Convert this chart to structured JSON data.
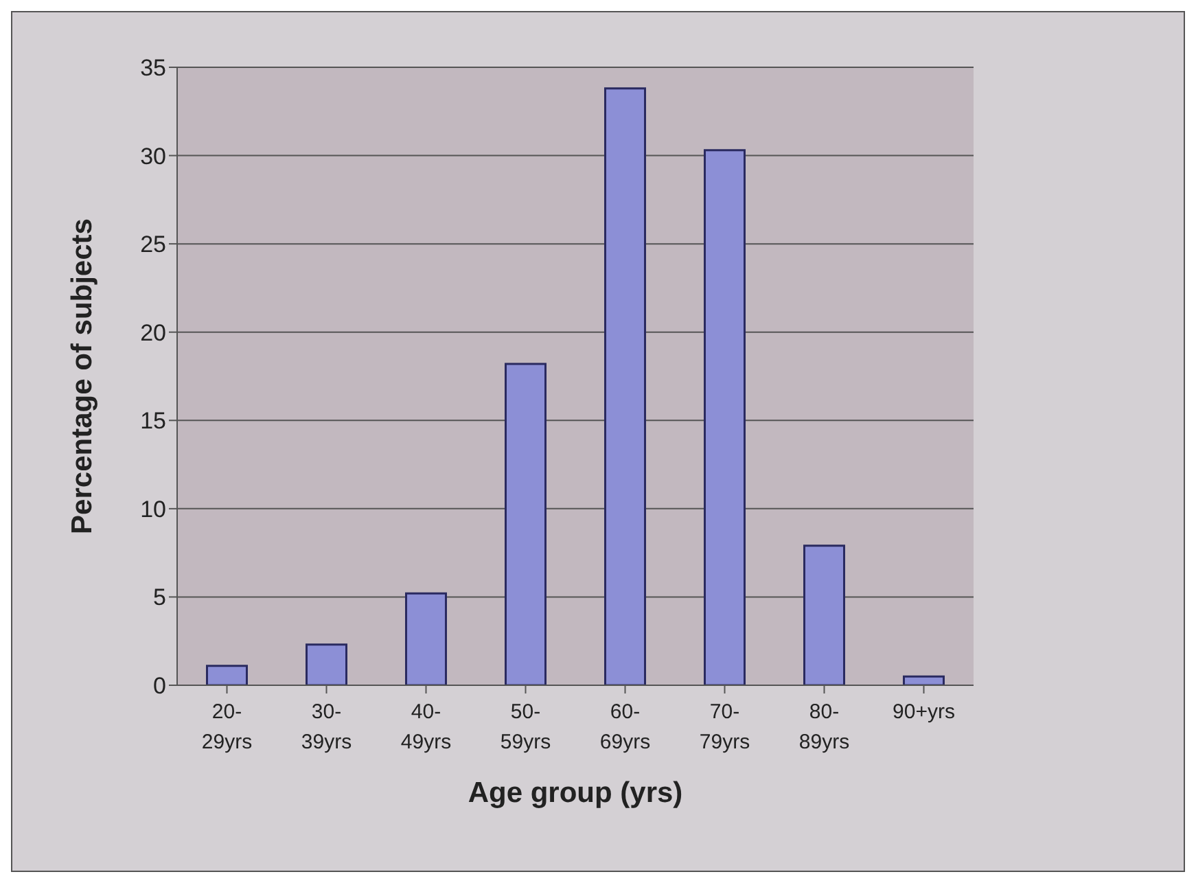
{
  "chart_data": {
    "type": "bar",
    "xlabel": "Age group (yrs)",
    "ylabel": "Percentage of subjects",
    "categories": [
      "20-29yrs",
      "30-39yrs",
      "40-49yrs",
      "50-59yrs",
      "60-69yrs",
      "70-79yrs",
      "80-89yrs",
      "90+yrs"
    ],
    "values": [
      1.1,
      2.3,
      5.2,
      18.2,
      33.8,
      30.3,
      7.9,
      0.5
    ],
    "color": "#8c8fd6",
    "ylim": [
      0,
      35
    ],
    "yticks": [
      0,
      5,
      10,
      15,
      20,
      25,
      30,
      35
    ],
    "grid": "y"
  }
}
